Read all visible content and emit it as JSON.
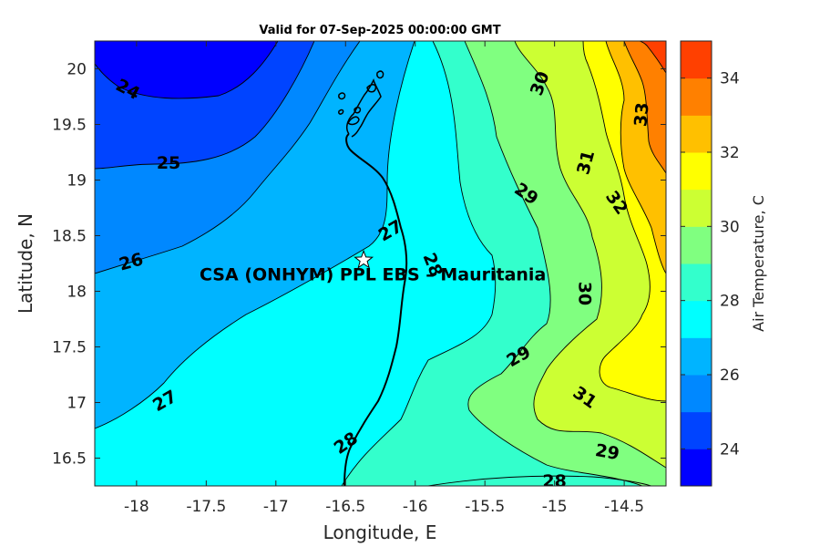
{
  "chart_data": {
    "type": "heatmap",
    "subtype": "filled-contour-map",
    "title": "Valid for 07-Sep-2025 00:00:00 GMT",
    "xlabel": "Longitude, E",
    "ylabel": "Latitude, N",
    "xlim": [
      -18.3,
      -14.2
    ],
    "ylim": [
      16.25,
      20.25
    ],
    "x_ticks": [
      -18,
      -17.5,
      -17,
      -16.5,
      -16,
      -15.5,
      -15,
      -14.5
    ],
    "x_tick_labels": [
      "-18",
      "-17.5",
      "-17",
      "-16.5",
      "-16",
      "-15.5",
      "-15",
      "-14.5"
    ],
    "y_ticks": [
      16.5,
      17,
      17.5,
      18,
      18.5,
      19,
      19.5,
      20
    ],
    "y_tick_labels": [
      "16.5",
      "17",
      "17.5",
      "18",
      "18.5",
      "19",
      "19.5",
      "20"
    ],
    "grid": false,
    "colorbar": {
      "label": "Air Temperature, C",
      "range": [
        23,
        35
      ],
      "levels": [
        23,
        24,
        25,
        26,
        27,
        28,
        29,
        30,
        31,
        32,
        33,
        34,
        35
      ],
      "ticks": [
        24,
        26,
        28,
        30,
        32,
        34
      ],
      "tick_labels": [
        "24",
        "26",
        "28",
        "30",
        "32",
        "34"
      ],
      "colors": [
        "#0000ff",
        "#0044ff",
        "#0088ff",
        "#00b4ff",
        "#00ffff",
        "#33ffcc",
        "#80ff80",
        "#ccff33",
        "#ffff00",
        "#ffc000",
        "#ff8000",
        "#ff4000"
      ]
    },
    "contour_labels": [
      {
        "text": "24",
        "lon": -18.06,
        "lat": 19.82,
        "angle": 28
      },
      {
        "text": "25",
        "lon": -17.77,
        "lat": 19.16,
        "angle": 0
      },
      {
        "text": "26",
        "lon": -18.04,
        "lat": 18.27,
        "angle": -15
      },
      {
        "text": "27",
        "lon": -16.18,
        "lat": 18.55,
        "angle": -30
      },
      {
        "text": "27",
        "lon": -17.8,
        "lat": 17.02,
        "angle": -30
      },
      {
        "text": "28",
        "lon": -15.87,
        "lat": 18.24,
        "angle": 68
      },
      {
        "text": "28",
        "lon": -16.5,
        "lat": 16.64,
        "angle": -35
      },
      {
        "text": "28",
        "lon": -15.0,
        "lat": 16.3,
        "angle": 0
      },
      {
        "text": "29",
        "lon": -15.2,
        "lat": 18.88,
        "angle": 35
      },
      {
        "text": "29",
        "lon": -15.26,
        "lat": 17.42,
        "angle": -30
      },
      {
        "text": "29",
        "lon": -14.62,
        "lat": 16.56,
        "angle": 10
      },
      {
        "text": "30",
        "lon": -15.11,
        "lat": 19.87,
        "angle": -70
      },
      {
        "text": "30",
        "lon": -14.78,
        "lat": 17.98,
        "angle": 90
      },
      {
        "text": "31",
        "lon": -14.78,
        "lat": 19.16,
        "angle": -75
      },
      {
        "text": "31",
        "lon": -14.78,
        "lat": 17.05,
        "angle": 35
      },
      {
        "text": "32",
        "lon": -14.55,
        "lat": 18.8,
        "angle": 55
      },
      {
        "text": "33",
        "lon": -14.38,
        "lat": 19.59,
        "angle": -85
      }
    ],
    "annotation": {
      "label": "CSA (ONHYM) PPL EBS  – Mauritania",
      "lon": -16.37,
      "lat": 18.28
    },
    "marker": {
      "symbol": "star",
      "lon": -16.37,
      "lat": 18.28
    }
  }
}
